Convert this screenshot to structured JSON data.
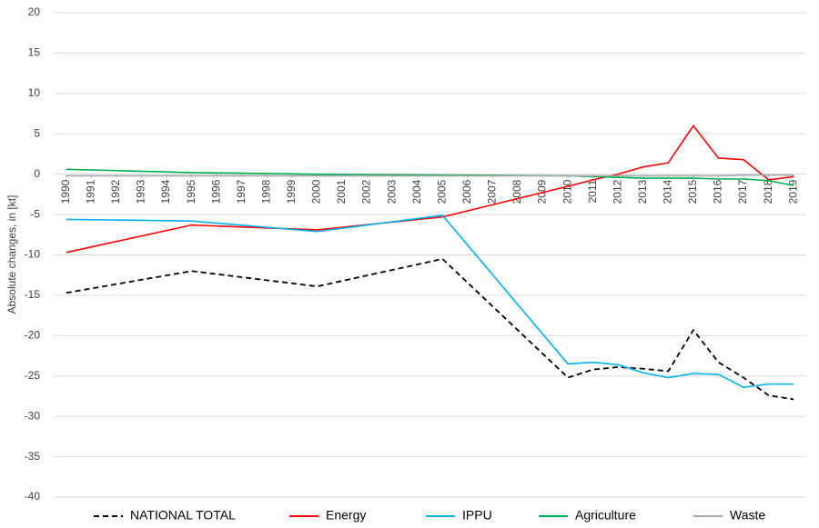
{
  "chart_data": {
    "type": "line",
    "y_label": "Absolute changes, in [kt]",
    "x": [
      1990,
      1995,
      2000,
      2005,
      2010,
      2011,
      2012,
      2013,
      2014,
      2015,
      2016,
      2017,
      2018,
      2019
    ],
    "xlim": [
      1989.5,
      2019.5
    ],
    "xticks": [
      1990,
      1991,
      1992,
      1993,
      1994,
      1995,
      1996,
      1997,
      1998,
      1999,
      2000,
      2001,
      2002,
      2003,
      2004,
      2005,
      2006,
      2007,
      2008,
      2009,
      2010,
      2011,
      2012,
      2013,
      2014,
      2015,
      2016,
      2017,
      2018,
      2019
    ],
    "ylim": [
      -40,
      20
    ],
    "yticks": [
      -40,
      -35,
      -30,
      -25,
      -20,
      -15,
      -10,
      -5,
      0,
      5,
      10,
      15,
      20
    ],
    "grid": true,
    "legend": "bottom",
    "series": [
      {
        "name": "NATIONAL TOTAL",
        "color": "#000000",
        "dashed": true,
        "values": [
          -14.7,
          -12.0,
          -13.9,
          -10.5,
          -25.2,
          -24.2,
          -23.9,
          -24.1,
          -24.4,
          -19.3,
          -23.3,
          -25.2,
          -27.4,
          -27.9
        ]
      },
      {
        "name": "Energy",
        "color": "#ff0000",
        "dashed": false,
        "values": [
          -9.7,
          -6.3,
          -6.9,
          -5.3,
          -1.5,
          -0.7,
          0.0,
          0.9,
          1.4,
          6.0,
          2.0,
          1.8,
          -0.7,
          -0.3
        ]
      },
      {
        "name": "IPPU",
        "color": "#00b0f0",
        "dashed": false,
        "values": [
          -5.6,
          -5.8,
          -7.1,
          -5.1,
          -23.5,
          -23.3,
          -23.6,
          -24.6,
          -25.2,
          -24.7,
          -24.8,
          -26.4,
          -26.0,
          -26.0
        ]
      },
      {
        "name": "Agriculture",
        "color": "#00b050",
        "dashed": false,
        "values": [
          0.6,
          0.2,
          0.0,
          -0.1,
          -0.2,
          -0.3,
          -0.4,
          -0.5,
          -0.5,
          -0.5,
          -0.6,
          -0.6,
          -0.8,
          -1.4
        ]
      },
      {
        "name": "Waste",
        "color": "#a6a6a6",
        "dashed": false,
        "values": [
          -0.2,
          -0.2,
          -0.2,
          -0.2,
          -0.2,
          -0.2,
          -0.2,
          -0.2,
          -0.2,
          -0.2,
          -0.2,
          -0.1,
          -0.1,
          -0.1
        ]
      }
    ]
  }
}
